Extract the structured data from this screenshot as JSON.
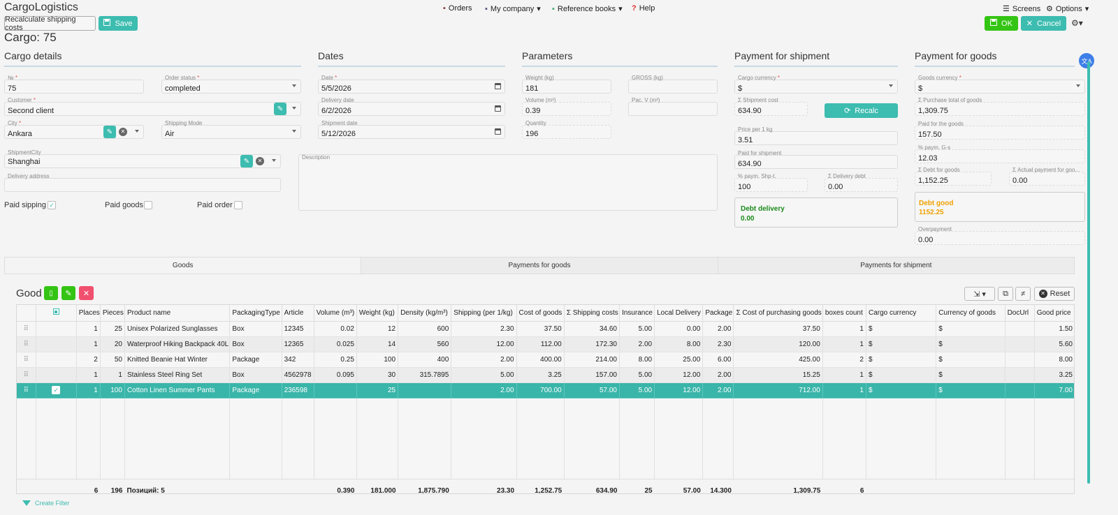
{
  "app": {
    "title": "CargoLogistics"
  },
  "toolbar": {
    "recalc_label": "Recalculate shipping costs",
    "save_label": "Save",
    "ok_label": "OK",
    "cancel_label": "Cancel"
  },
  "nav": {
    "orders": "Orders",
    "company": "My company",
    "refbooks": "Reference books",
    "help": "Help",
    "screens": "Screens",
    "options": "Options"
  },
  "page": {
    "title": "Cargo: 75"
  },
  "sections": {
    "cargo": "Cargo details",
    "dates": "Dates",
    "params": "Parameters",
    "pay_ship": "Payment for shipment",
    "pay_goods": "Payment for goods"
  },
  "cargo": {
    "no_label": "№",
    "no_value": "75",
    "status_label": "Order status",
    "status_value": "completed",
    "customer_label": "Customer",
    "customer_value": "Second client",
    "city_label": "City",
    "city_value": "Ankara",
    "mode_label": "Shipping Mode",
    "mode_value": "Air",
    "scity_label": "ShipmentCity",
    "scity_value": "Shanghai",
    "addr_label": "Delivery address",
    "paid_shipping": "Paid sipping",
    "paid_goods": "Paid goods",
    "paid_order": "Paid order"
  },
  "dates": {
    "date_label": "Date",
    "date_value": "5/5/2026",
    "deliv_label": "Delivery date",
    "deliv_value": "6/2/2026",
    "ship_label": "Shipment date",
    "ship_value": "5/12/2026",
    "desc_label": "Description"
  },
  "params": {
    "weight_label": "Weight (kg)",
    "weight_value": "181",
    "gross_label": "GROSS (kg)",
    "volume_label": "Volume (m³)",
    "volume_value": "0.39",
    "pacv_label": "Pac. V (m³)",
    "qty_label": "Quantity",
    "qty_value": "196"
  },
  "payship": {
    "cur_label": "Cargo currency",
    "cur_value": "$",
    "cost_label": "Σ Shipment cost",
    "cost_value": "634.90",
    "recalc": "Recalc",
    "price_label": "Price per 1 kg",
    "price_value": "3.51",
    "paid_label": "Paid for shipment",
    "paid_value": "634.90",
    "pct_label": "% paym. Shp-t.",
    "pct_value": "100",
    "debt_label": "Σ Delivery debt",
    "debt_value": "0.00",
    "box_title": "Debt delivery",
    "box_value": "0.00"
  },
  "paygoods": {
    "cur_label": "Goods currency",
    "cur_value": "$",
    "total_label": "Σ Purchase total of goods",
    "total_value": "1,309.75",
    "paid_label": "Paid for the goods",
    "paid_value": "157.50",
    "pct_label": "% paym. G-s",
    "pct_value": "12.03",
    "debt_label": "Σ Debt for goods",
    "debt_value": "1,152.25",
    "actual_label": "Σ Actual payment for goo...",
    "actual_value": "0.00",
    "box_title": "Debt good",
    "box_value": "1152.25",
    "over_label": "Overpayment",
    "over_value": "0.00"
  },
  "tabs": [
    "Goods",
    "Payments for goods",
    "Payments for shipment"
  ],
  "grid": {
    "title": "Good",
    "reset": "Reset",
    "neq": "≠",
    "columns": [
      "",
      "",
      "Places",
      "Pieces",
      "Product name",
      "PackagingType",
      "Article",
      "Volume (m³)",
      "Weight (kg)",
      "Density (kg/m³)",
      "Shipping (per 1/kg)",
      "Cost of goods",
      "Σ Shipping costs",
      "Insurance",
      "Local Delivery",
      "Package",
      "Σ Cost of purchasing goods",
      "boxes count",
      "Cargo currency",
      "Currency of goods",
      "DocUrl",
      "Good price"
    ],
    "rows": [
      [
        "⠿",
        "",
        "1",
        "25",
        "Unisex Polarized Sunglasses",
        "Box",
        "12345",
        "0.02",
        "12",
        "600",
        "2.30",
        "37.50",
        "34.60",
        "5.00",
        "0.00",
        "2.00",
        "37.50",
        "1",
        "$",
        "$",
        "",
        "1.50"
      ],
      [
        "⠿",
        "",
        "1",
        "20",
        "Waterproof Hiking Backpack 40L",
        "Box",
        "12365",
        "0.025",
        "14",
        "560",
        "12.00",
        "112.00",
        "172.30",
        "2.00",
        "8.00",
        "2.30",
        "120.00",
        "1",
        "$",
        "$",
        "",
        "5.60"
      ],
      [
        "⠿",
        "",
        "2",
        "50",
        "Knitted Beanie Hat Winter",
        "Package",
        "342",
        "0.25",
        "100",
        "400",
        "2.00",
        "400.00",
        "214.00",
        "8.00",
        "25.00",
        "6.00",
        "425.00",
        "2",
        "$",
        "$",
        "",
        "8.00"
      ],
      [
        "⠿",
        "",
        "1",
        "1",
        "Stainless Steel Ring Set",
        "Box",
        "4562978",
        "0.095",
        "30",
        "315.7895",
        "5.00",
        "3.25",
        "157.00",
        "5.00",
        "12.00",
        "2.00",
        "15.25",
        "1",
        "$",
        "$",
        "",
        "3.25"
      ],
      [
        "⠿",
        "",
        "1",
        "100",
        "Cotton Linen Summer Pants",
        "Package",
        "236598",
        "",
        "25",
        "",
        "2.00",
        "700.00",
        "57.00",
        "5.00",
        "12.00",
        "2.00",
        "712.00",
        "1",
        "$",
        "$",
        "",
        "7.00"
      ]
    ],
    "footer": [
      "",
      "",
      "6",
      "196",
      "Позиций: 5",
      "",
      "",
      "0.390",
      "181.000",
      "1,875.790",
      "23.30",
      "1,252.75",
      "634.90",
      "25",
      "57.00",
      "14.300",
      "1,309.75",
      "6",
      "",
      "",
      "",
      ""
    ],
    "create_filter": "Create Filter"
  },
  "colors": {
    "teal": "#3dbcb0",
    "green": "#34c414",
    "red": "#f0506e",
    "debt_green": "#1a8a1a",
    "debt_orange": "#f0a000"
  }
}
